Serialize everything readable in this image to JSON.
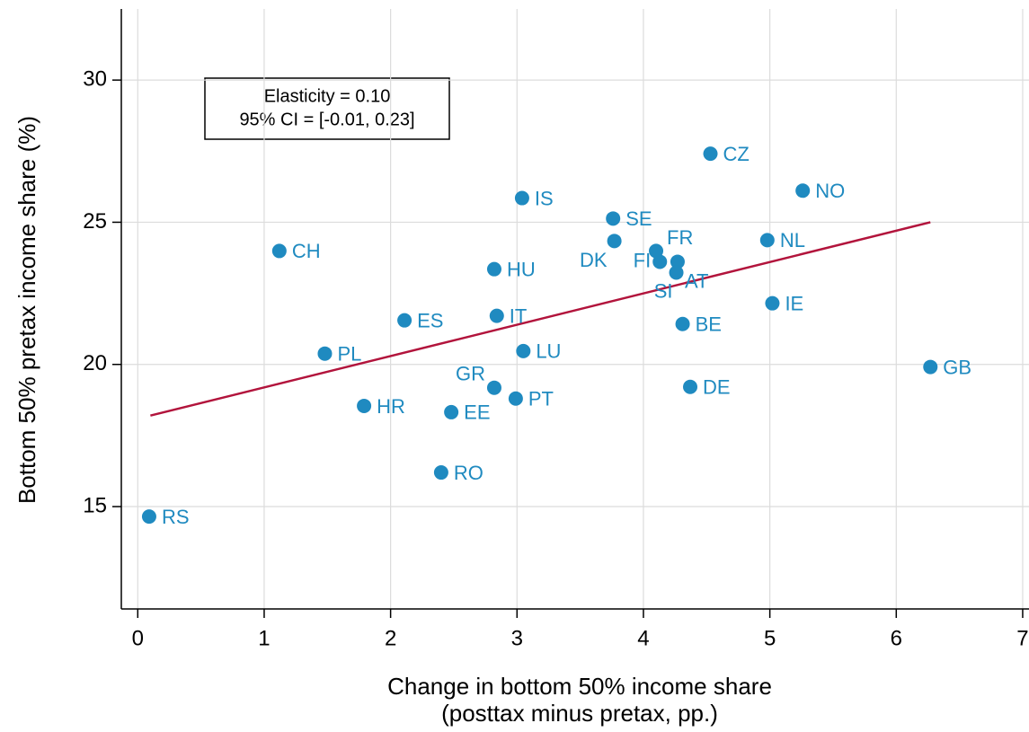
{
  "chart_data": {
    "type": "scatter",
    "x_label": [
      "Change in bottom 50% income share",
      "(posttax minus pretax, pp.)"
    ],
    "y_label": "Bottom 50% pretax income share (%)",
    "annotation": [
      "Elasticity = 0.10",
      "95% CI = [-0.01, 0.23]"
    ],
    "color": "#1f8ac0",
    "fit_color": "#b2143c",
    "grid": true,
    "xlim": [
      -0.13,
      7.05
    ],
    "xticks": [
      0,
      1,
      2,
      3,
      4,
      5,
      6,
      7
    ],
    "ylim": [
      11.4,
      32.5
    ],
    "yticks": [
      15,
      20,
      25,
      30
    ],
    "points": {
      "labels": [
        "RS",
        "CH",
        "PL",
        "HR",
        "ES",
        "RO",
        "EE",
        "HU",
        "GR",
        "IT",
        "PT",
        "IS",
        "LU",
        "SE",
        "DK",
        "FR",
        "FI",
        "AT",
        "SI",
        "CZ",
        "NO",
        "NL",
        "IE",
        "BE",
        "DE",
        "GB"
      ],
      "x": [
        0.09,
        1.12,
        1.48,
        1.79,
        2.11,
        2.4,
        2.48,
        2.82,
        2.82,
        2.84,
        2.99,
        3.04,
        3.05,
        3.76,
        3.77,
        4.1,
        4.13,
        4.27,
        4.26,
        4.53,
        5.26,
        4.98,
        5.02,
        4.31,
        4.37,
        6.27
      ],
      "y": [
        14.65,
        23.99,
        20.38,
        18.54,
        21.55,
        16.2,
        18.32,
        23.35,
        19.18,
        21.71,
        18.8,
        25.85,
        20.47,
        25.13,
        24.34,
        23.99,
        23.61,
        23.61,
        23.23,
        27.41,
        26.11,
        24.37,
        22.15,
        21.42,
        19.21,
        19.91
      ]
    },
    "fit_line": {
      "x": [
        0.1,
        6.27
      ],
      "y": [
        18.2,
        25.0
      ]
    }
  }
}
